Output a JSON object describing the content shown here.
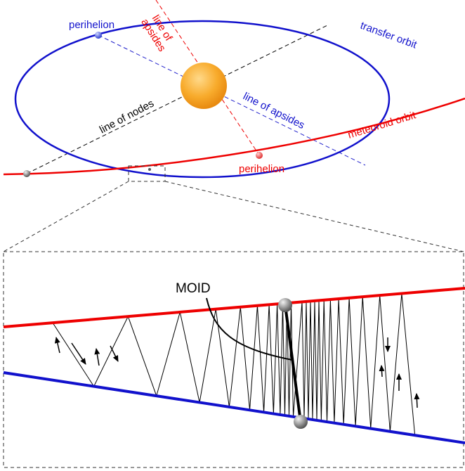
{
  "labels": {
    "perihelion_transfer": "perihelion",
    "apsides_red": [
      "line of",
      "apsides"
    ],
    "transfer_orbit": "transfer orbit",
    "line_of_nodes": "line of nodes",
    "apsides_blue": "line of apsides",
    "meteoroid_orbit": "meteoroid orbit",
    "perihelion_meteoroid": "perihelion",
    "moid": "MOID"
  }
}
